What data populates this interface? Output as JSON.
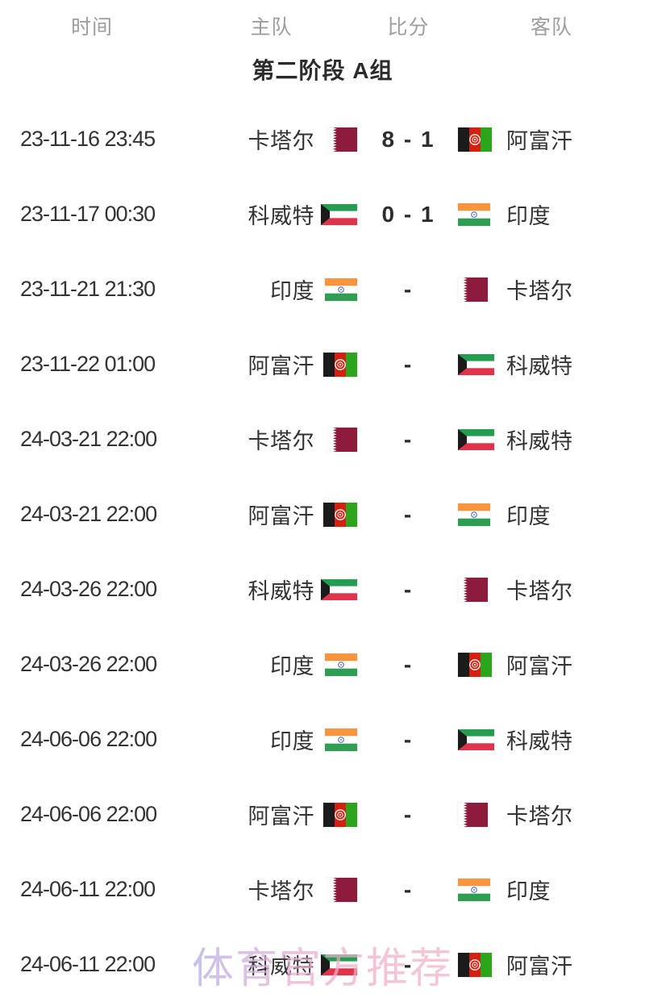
{
  "table": {
    "columns": [
      {
        "label": "时间"
      },
      {
        "label": "主队"
      },
      {
        "label": "比分"
      },
      {
        "label": "客队"
      }
    ],
    "section_title": "第二阶段 A组"
  },
  "matches": [
    {
      "time": "23-11-16 23:45",
      "home": {
        "name": "卡塔尔",
        "icon": "qatar-flag-icon"
      },
      "score": "8 - 1",
      "away": {
        "name": "阿富汗",
        "icon": "afghanistan-flag-icon"
      }
    },
    {
      "time": "23-11-17 00:30",
      "home": {
        "name": "科威特",
        "icon": "kuwait-flag-icon"
      },
      "score": "0 - 1",
      "away": {
        "name": "印度",
        "icon": "india-flag-icon"
      }
    },
    {
      "time": "23-11-21 21:30",
      "home": {
        "name": "印度",
        "icon": "india-flag-icon"
      },
      "score": "-",
      "away": {
        "name": "卡塔尔",
        "icon": "qatar-flag-icon"
      }
    },
    {
      "time": "23-11-22 01:00",
      "home": {
        "name": "阿富汗",
        "icon": "afghanistan-flag-icon"
      },
      "score": "-",
      "away": {
        "name": "科威特",
        "icon": "kuwait-flag-icon"
      }
    },
    {
      "time": "24-03-21 22:00",
      "home": {
        "name": "卡塔尔",
        "icon": "qatar-flag-icon"
      },
      "score": "-",
      "away": {
        "name": "科威特",
        "icon": "kuwait-flag-icon"
      }
    },
    {
      "time": "24-03-21 22:00",
      "home": {
        "name": "阿富汗",
        "icon": "afghanistan-flag-icon"
      },
      "score": "-",
      "away": {
        "name": "印度",
        "icon": "india-flag-icon"
      }
    },
    {
      "time": "24-03-26 22:00",
      "home": {
        "name": "科威特",
        "icon": "kuwait-flag-icon"
      },
      "score": "-",
      "away": {
        "name": "卡塔尔",
        "icon": "qatar-flag-icon"
      }
    },
    {
      "time": "24-03-26 22:00",
      "home": {
        "name": "印度",
        "icon": "india-flag-icon"
      },
      "score": "-",
      "away": {
        "name": "阿富汗",
        "icon": "afghanistan-flag-icon"
      }
    },
    {
      "time": "24-06-06 22:00",
      "home": {
        "name": "印度",
        "icon": "india-flag-icon"
      },
      "score": "-",
      "away": {
        "name": "科威特",
        "icon": "kuwait-flag-icon"
      }
    },
    {
      "time": "24-06-06 22:00",
      "home": {
        "name": "阿富汗",
        "icon": "afghanistan-flag-icon"
      },
      "score": "-",
      "away": {
        "name": "卡塔尔",
        "icon": "qatar-flag-icon"
      }
    },
    {
      "time": "24-06-11 22:00",
      "home": {
        "name": "卡塔尔",
        "icon": "qatar-flag-icon"
      },
      "score": "-",
      "away": {
        "name": "印度",
        "icon": "india-flag-icon"
      }
    },
    {
      "time": "24-06-11 22:00",
      "home": {
        "name": "科威特",
        "icon": "kuwait-flag-icon"
      },
      "score": "-",
      "away": {
        "name": "阿富汗",
        "icon": "afghanistan-flag-icon"
      }
    }
  ],
  "watermark": {
    "text": "体育官方推荐"
  },
  "colors": {
    "header_text": "#9e9e9e",
    "body_text": "#333333",
    "title_text": "#2b2b2b",
    "qatar_maroon": "#8d1b3d",
    "afghanistan_black": "#1b1b1b",
    "afghanistan_red": "#d32011",
    "afghanistan_green": "#2ca51c",
    "kuwait_green": "#259d50",
    "kuwait_red": "#e0344c",
    "india_saffron": "#f6953e",
    "india_green": "#2f9e53",
    "india_chakra_blue": "#3b5bc4",
    "watermark_start": "#b2a9e6",
    "watermark_end": "#f5b0c3"
  }
}
